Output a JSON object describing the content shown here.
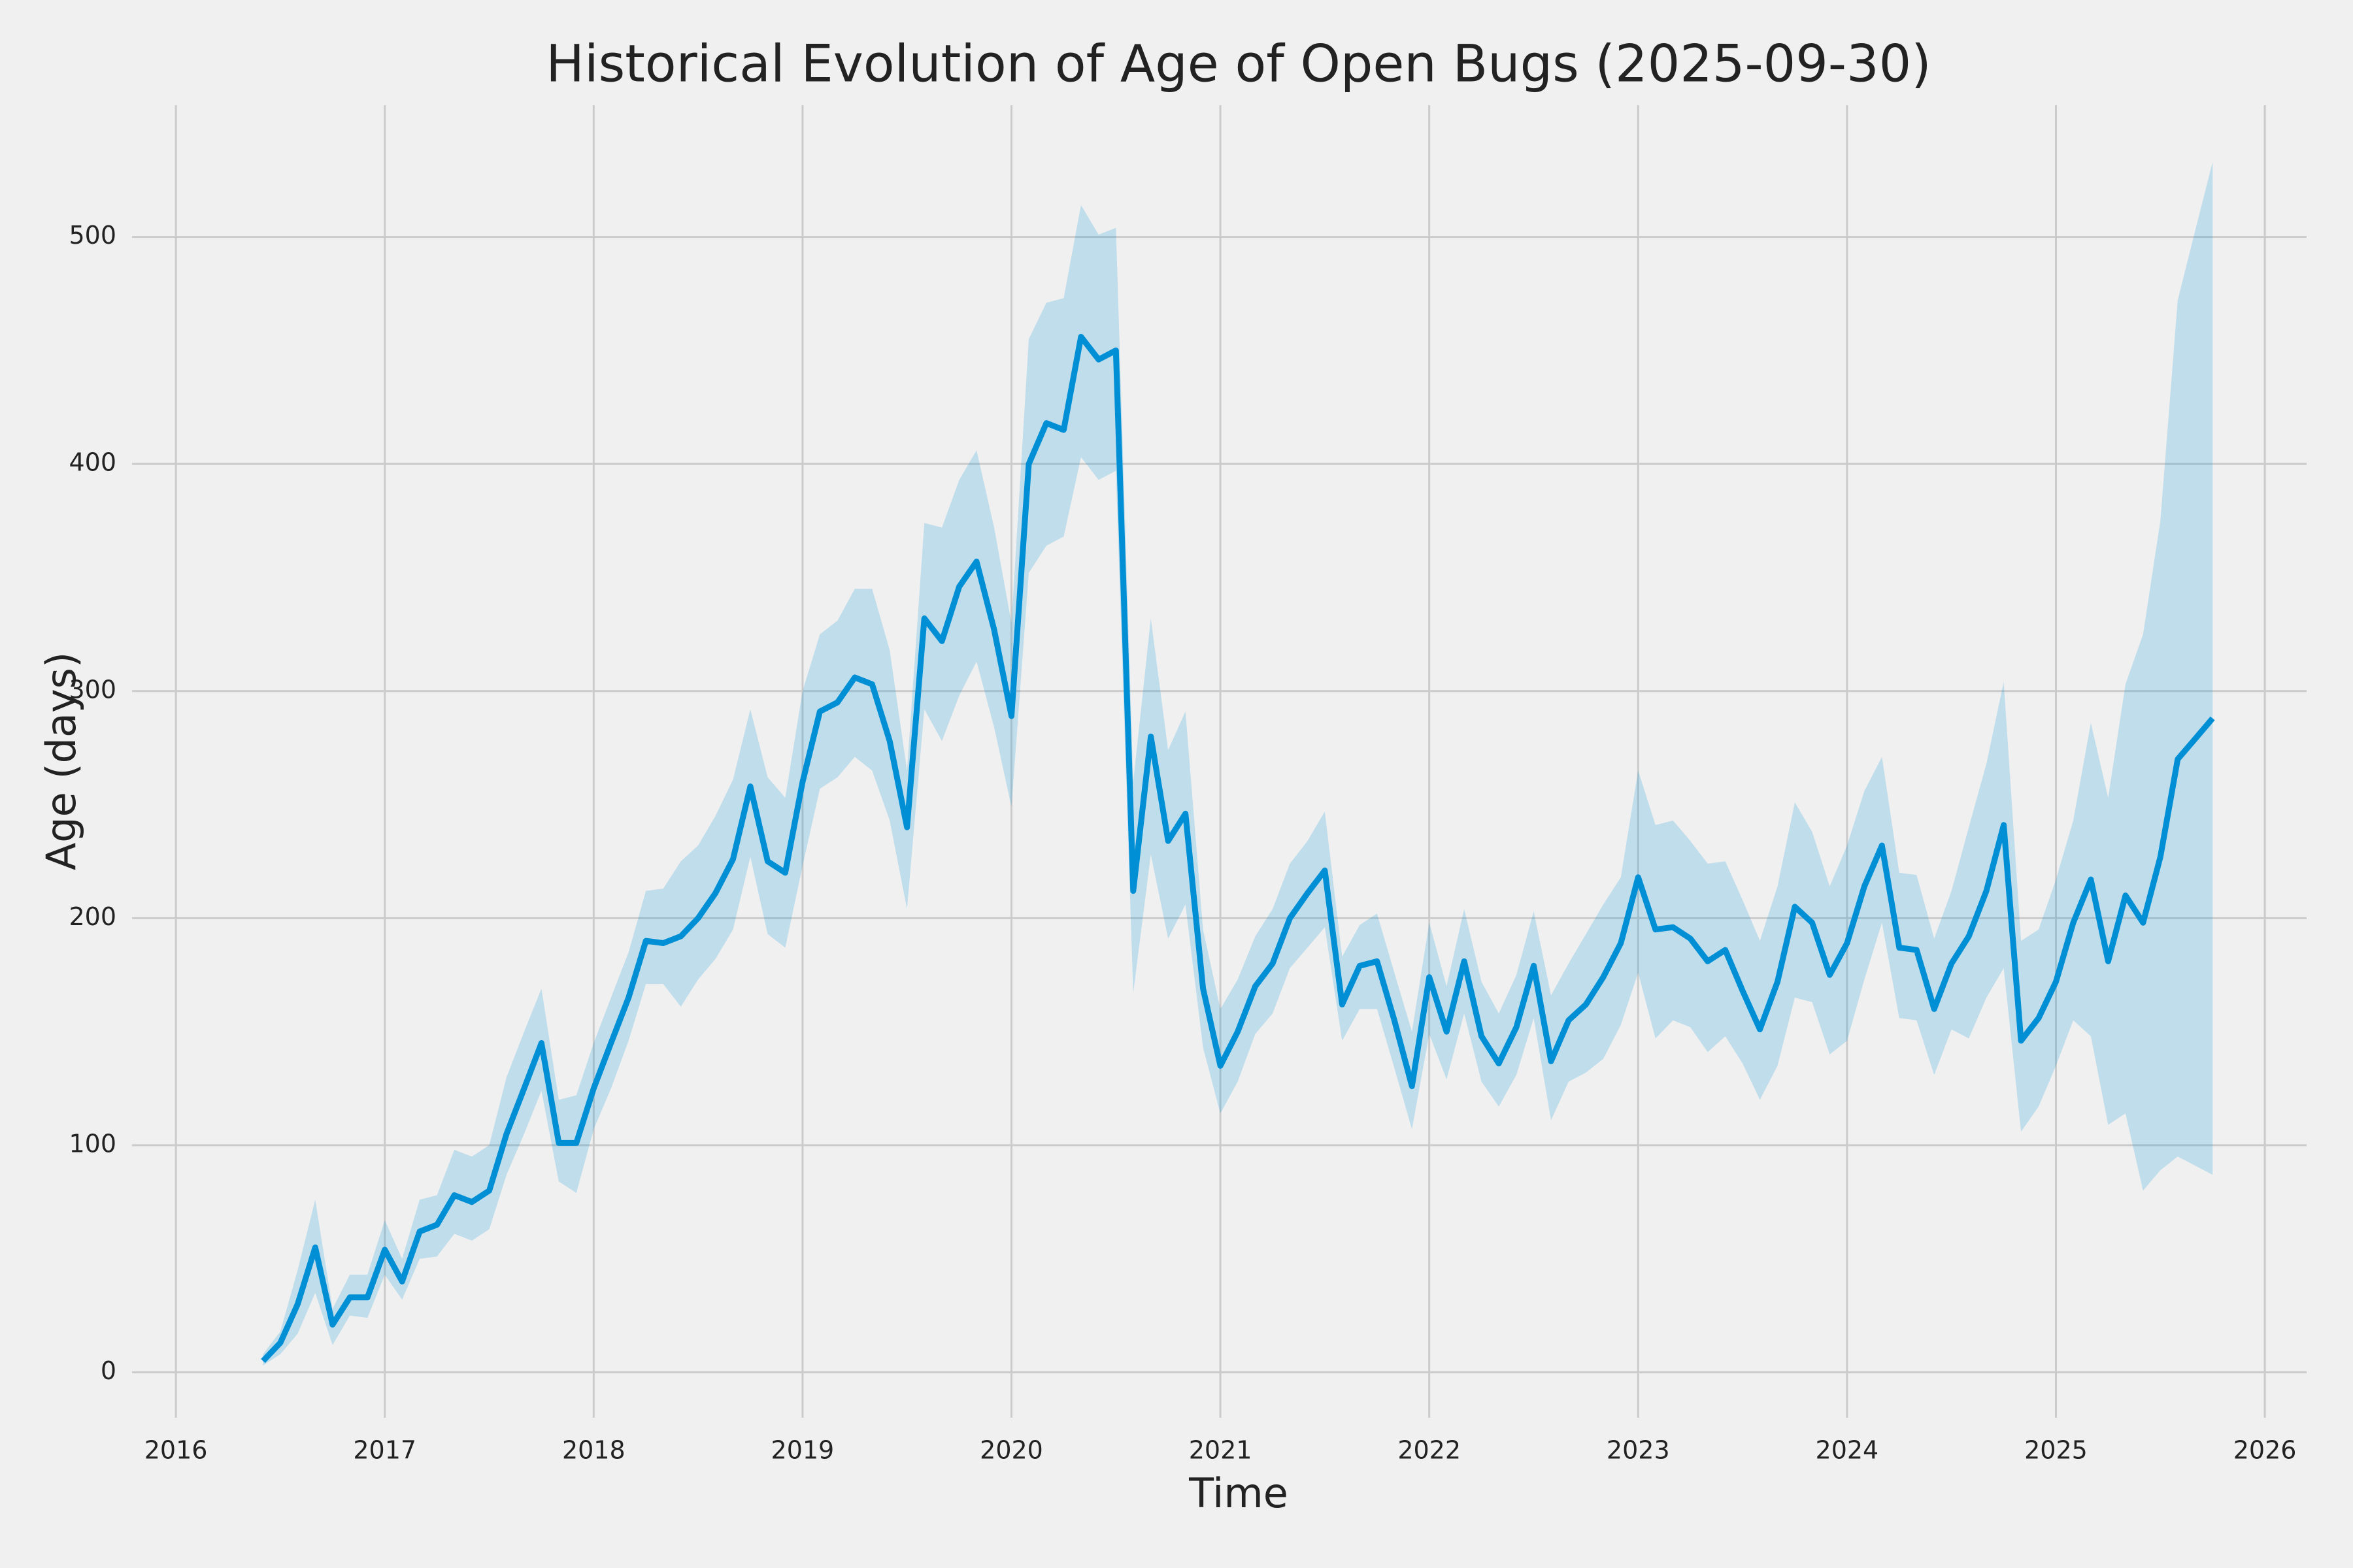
{
  "chart_data": {
    "type": "line",
    "title": "Historical Evolution of Age of Open Bugs (2025-09-30)",
    "x_label": "Time",
    "y_label": "Age (days)",
    "x": [
      2016.417,
      2016.5,
      2016.583,
      2016.667,
      2016.75,
      2016.833,
      2016.917,
      2017.0,
      2017.083,
      2017.167,
      2017.25,
      2017.333,
      2017.417,
      2017.5,
      2017.583,
      2017.667,
      2017.75,
      2017.833,
      2017.917,
      2018.0,
      2018.083,
      2018.167,
      2018.25,
      2018.333,
      2018.417,
      2018.5,
      2018.583,
      2018.667,
      2018.75,
      2018.833,
      2018.917,
      2019.0,
      2019.083,
      2019.167,
      2019.25,
      2019.333,
      2019.417,
      2019.5,
      2019.583,
      2019.667,
      2019.75,
      2019.833,
      2019.917,
      2020.0,
      2020.083,
      2020.167,
      2020.25,
      2020.333,
      2020.417,
      2020.5,
      2020.583,
      2020.667,
      2020.75,
      2020.833,
      2020.917,
      2021.0,
      2021.083,
      2021.167,
      2021.25,
      2021.333,
      2021.417,
      2021.5,
      2021.583,
      2021.667,
      2021.75,
      2021.833,
      2021.917,
      2022.0,
      2022.083,
      2022.167,
      2022.25,
      2022.333,
      2022.417,
      2022.5,
      2022.583,
      2022.667,
      2022.75,
      2022.833,
      2022.917,
      2023.0,
      2023.083,
      2023.167,
      2023.25,
      2023.333,
      2023.417,
      2023.5,
      2023.583,
      2023.667,
      2023.75,
      2023.833,
      2023.917,
      2024.0,
      2024.083,
      2024.167,
      2024.25,
      2024.333,
      2024.417,
      2024.5,
      2024.583,
      2024.667,
      2024.75,
      2024.833,
      2024.917,
      2025.0,
      2025.083,
      2025.167,
      2025.25,
      2025.333,
      2025.417,
      2025.5,
      2025.583,
      2025.667,
      2025.75
    ],
    "values": [
      5,
      13,
      30,
      55,
      21,
      33,
      33,
      54,
      40,
      62,
      65,
      78,
      75,
      80,
      105,
      125,
      145,
      101,
      101,
      125,
      145,
      165,
      190,
      189,
      192,
      200,
      211,
      226,
      258,
      225,
      220,
      260,
      291,
      295,
      306,
      303,
      278,
      240,
      332,
      322,
      346,
      357,
      327,
      289,
      400,
      418,
      415,
      456,
      446,
      450,
      212,
      280,
      234,
      246,
      169,
      135,
      150,
      170,
      180,
      200,
      211,
      221,
      162,
      179,
      181,
      155,
      126,
      174,
      150,
      181,
      148,
      136,
      152,
      179,
      137,
      155,
      162,
      174,
      189,
      218,
      195,
      196,
      191,
      181,
      186,
      168,
      151,
      172,
      205,
      198,
      175,
      189,
      214,
      232,
      187,
      186,
      160,
      180,
      192,
      212,
      241,
      146,
      156,
      172,
      198,
      217,
      181,
      210,
      198,
      227,
      270,
      279,
      288
    ],
    "upper": [
      8,
      18,
      45,
      76,
      28,
      43,
      43,
      67,
      50,
      76,
      78,
      98,
      95,
      100,
      130,
      150,
      169,
      120,
      122,
      145,
      165,
      185,
      212,
      213,
      225,
      232,
      245,
      261,
      292,
      262,
      253,
      300,
      325,
      331,
      345,
      345,
      318,
      265,
      374,
      372,
      393,
      406,
      372,
      330,
      455,
      471,
      473,
      514,
      501,
      504,
      260,
      332,
      274,
      291,
      195,
      160,
      173,
      192,
      204,
      224,
      234,
      247,
      183,
      197,
      202,
      176,
      150,
      198,
      170,
      204,
      172,
      158,
      175,
      203,
      166,
      180,
      193,
      206,
      218,
      265,
      241,
      243,
      234,
      224,
      225,
      208,
      190,
      214,
      251,
      238,
      214,
      232,
      256,
      271,
      220,
      219,
      191,
      212,
      240,
      268,
      304,
      190,
      195,
      217,
      243,
      286,
      253,
      303,
      325,
      375,
      472,
      503,
      533
    ],
    "lower": [
      3,
      8,
      17,
      35,
      12,
      25,
      24,
      43,
      32,
      50,
      51,
      61,
      58,
      63,
      87,
      105,
      124,
      84,
      79,
      107,
      125,
      146,
      171,
      171,
      161,
      173,
      182,
      195,
      227,
      193,
      187,
      223,
      257,
      262,
      271,
      265,
      243,
      204,
      292,
      278,
      298,
      313,
      284,
      249,
      352,
      364,
      368,
      403,
      393,
      397,
      167,
      228,
      191,
      206,
      143,
      114,
      128,
      149,
      158,
      178,
      187,
      196,
      146,
      160,
      160,
      134,
      107,
      149,
      129,
      158,
      128,
      117,
      131,
      156,
      111,
      128,
      132,
      138,
      153,
      176,
      147,
      155,
      152,
      141,
      148,
      136,
      120,
      135,
      165,
      163,
      140,
      146,
      173,
      198,
      156,
      155,
      131,
      151,
      147,
      165,
      178,
      106,
      117,
      135,
      155,
      148,
      109,
      114,
      80,
      89,
      95,
      91,
      87
    ],
    "color": "#008fd5",
    "xlim": [
      2015.79,
      2026.2
    ],
    "xticks": [
      2016,
      2017,
      2018,
      2019,
      2020,
      2021,
      2022,
      2023,
      2024,
      2025,
      2026
    ],
    "ylim": [
      -20,
      558
    ],
    "yticks": [
      0,
      100,
      200,
      300,
      400,
      500
    ],
    "grid": true
  }
}
